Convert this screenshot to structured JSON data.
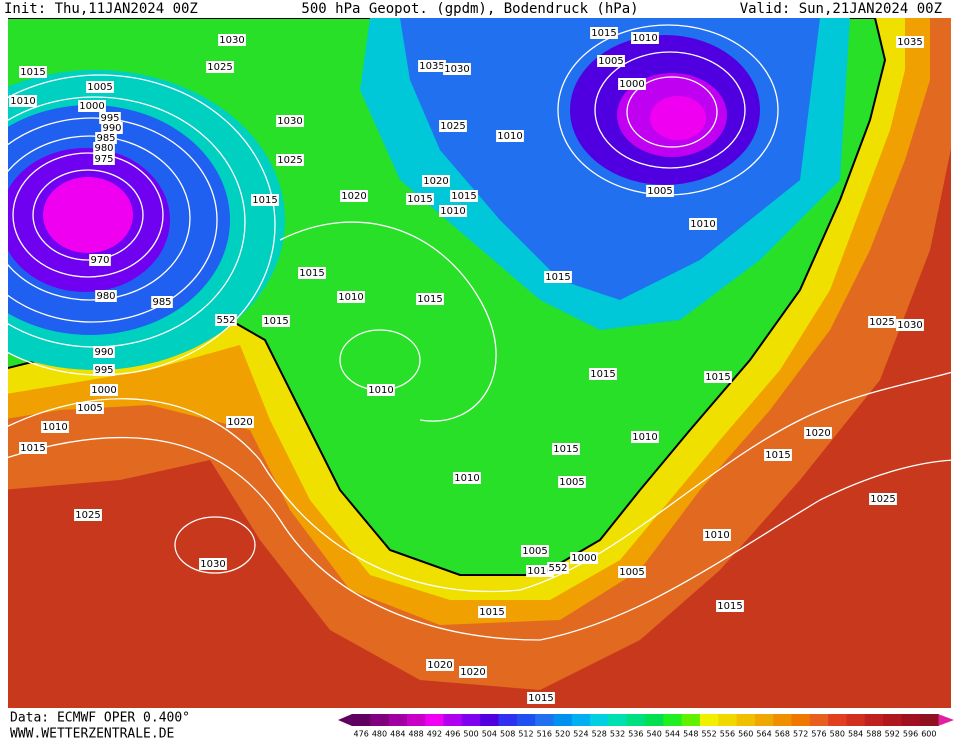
{
  "header": {
    "init": "Init: Thu,11JAN2024 00Z",
    "title": "500 hPa Geopot. (gpdm), Bodendruck (hPa)",
    "valid": "Valid: Sun,21JAN2024 00Z"
  },
  "footer": {
    "source": "Data: ECMWF OPER 0.400°",
    "website": "WWW.WETTERZENTRALE.DE"
  },
  "isobar_labels": [
    "1030",
    "1015",
    "1005",
    "1010",
    "1000",
    "995",
    "990",
    "985",
    "980",
    "975",
    "1025",
    "1035",
    "1030",
    "1015",
    "1010",
    "1005",
    "1000",
    "1030",
    "1025",
    "1010",
    "1025",
    "1020",
    "1015",
    "1005",
    "1015",
    "1020",
    "1015",
    "1010",
    "1010",
    "970",
    "1015",
    "1015",
    "980",
    "1010",
    "1015",
    "985",
    "1015",
    "552",
    "1025",
    "1030",
    "990",
    "995",
    "1015",
    "1015",
    "1000",
    "1010",
    "1005",
    "1020",
    "1010",
    "1020",
    "1010",
    "1015",
    "1015",
    "1015",
    "1010",
    "1005",
    "1025",
    "1025",
    "1010",
    "1005",
    "1000",
    "1030",
    "1010",
    "552",
    "1005",
    "1015",
    "1015",
    "1020",
    "1020",
    "1015",
    "1035"
  ],
  "colorbar": {
    "ticks": [
      476,
      480,
      484,
      488,
      492,
      496,
      500,
      504,
      508,
      512,
      516,
      520,
      524,
      528,
      532,
      536,
      540,
      544,
      548,
      552,
      556,
      560,
      564,
      568,
      572,
      576,
      580,
      584,
      588,
      592,
      596,
      600
    ],
    "colors": [
      "#600060",
      "#800080",
      "#a000a0",
      "#c800c8",
      "#f000f0",
      "#b000f0",
      "#8000f0",
      "#5000e0",
      "#3030f0",
      "#2050f0",
      "#2070f0",
      "#0090f0",
      "#00b0f0",
      "#00d0e0",
      "#00e0b0",
      "#00e080",
      "#00e050",
      "#20f020",
      "#60f000",
      "#f0f000",
      "#f0d800",
      "#f0c000",
      "#f0a800",
      "#f09000",
      "#f07800",
      "#e86020",
      "#e04020",
      "#d03020",
      "#c02020",
      "#b01820",
      "#a01020",
      "#901020"
    ]
  }
}
